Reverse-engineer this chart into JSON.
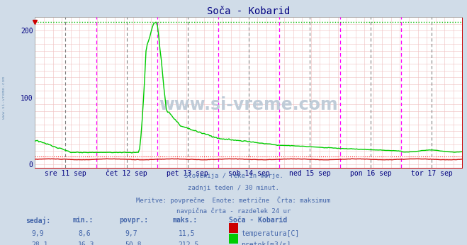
{
  "title": "Soča - Kobarid",
  "background_color": "#d0dce8",
  "plot_bg_color": "#ffffff",
  "title_color": "#000080",
  "axis_label_color": "#000080",
  "text_color": "#4466aa",
  "subtitle_text_color": "#4466aa",
  "subtitle_lines": [
    "Slovenija / reke in morje.",
    "zadnji teden / 30 minut.",
    "Meritve: povprečne  Enote: metrične  Črta: maksimum",
    "navpična črta - razdelek 24 ur"
  ],
  "xticklabels": [
    "sre 11 sep",
    "čet 12 sep",
    "pet 13 sep",
    "sob 14 sep",
    "ned 15 sep",
    "pon 16 sep",
    "tor 17 sep"
  ],
  "yticks": [
    0,
    100,
    200
  ],
  "ylim": [
    -5,
    220
  ],
  "temp_max_line": 11.5,
  "flow_max_line": 212.5,
  "vline_color_day": "#ff00ff",
  "vline_color_noon": "#808080",
  "hgrid_color": "#f0c0c0",
  "vgrid_color": "#f0c0c0",
  "max_line_color_temp": "#ff0000",
  "max_line_color_flow": "#00bb00",
  "temp_color": "#cc0000",
  "flow_color": "#00cc00",
  "table_headers": [
    "sedaj:",
    "min.:",
    "povpr.:",
    "maks.:",
    "Soča - Kobarid"
  ],
  "table_row1": [
    "9,9",
    "8,6",
    "9,7",
    "11,5"
  ],
  "table_row2": [
    "28,1",
    "16,3",
    "50,8",
    "212,5"
  ],
  "legend_labels": [
    "temperatura[C]",
    "pretok[m3/s]"
  ],
  "legend_colors": [
    "#cc0000",
    "#00cc00"
  ],
  "watermark": "www.si-vreme.com",
  "watermark_color": "#c0ccd8",
  "side_text": "www.si-vreme.com",
  "n_points": 336
}
